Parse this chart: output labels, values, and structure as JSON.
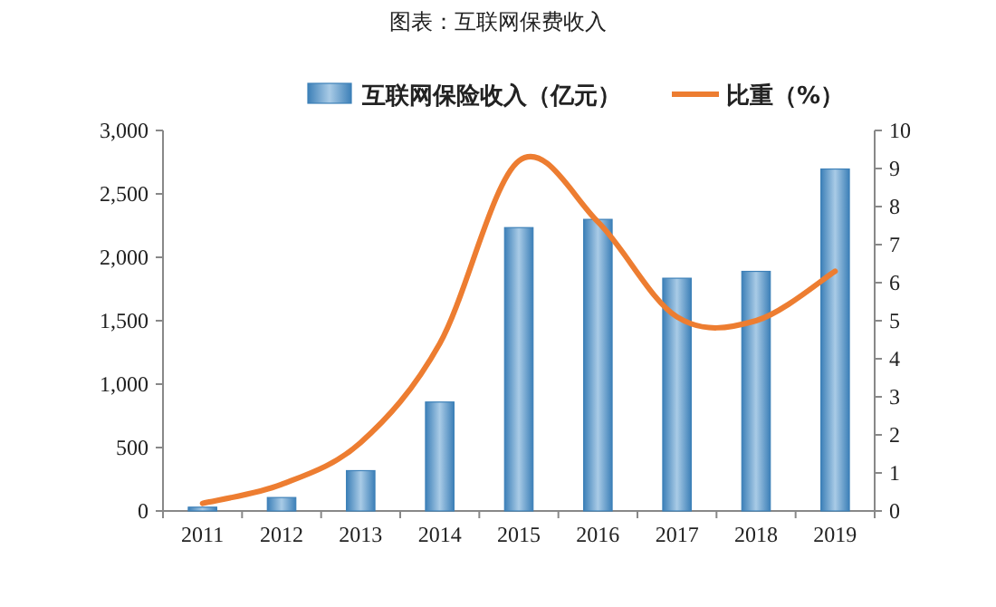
{
  "chart_data": {
    "type": "bar",
    "title": "图表：互联网保费收入",
    "categories": [
      "2011",
      "2012",
      "2013",
      "2014",
      "2015",
      "2016",
      "2017",
      "2018",
      "2019"
    ],
    "series": [
      {
        "name": "互联网保险收入（亿元）",
        "color": "#3d80b8",
        "values": [
          30,
          106,
          318,
          859,
          2234,
          2299,
          1835,
          1889,
          2696
        ]
      },
      {
        "name": "比重（%）",
        "type": "line",
        "axis": "y2",
        "color": "#ed7d31",
        "values": [
          0.2,
          0.7,
          1.8,
          4.4,
          9.2,
          7.6,
          5.1,
          5.0,
          6.3
        ]
      }
    ],
    "ylim": [
      0,
      3000
    ],
    "yticks": [
      0,
      500,
      {
        "value": 1000,
        "label": "1,000"
      },
      {
        "value": 1500,
        "label": "1,500"
      },
      {
        "value": 2000,
        "label": "2,000"
      },
      {
        "value": 2500,
        "label": "2,500"
      },
      {
        "value": 3000,
        "label": "3,000"
      }
    ],
    "y2lim": [
      0,
      10
    ],
    "y2ticks": [
      0,
      1,
      2,
      3,
      4,
      5,
      6,
      7,
      8,
      9,
      10
    ],
    "legend": "top",
    "grid": false
  }
}
